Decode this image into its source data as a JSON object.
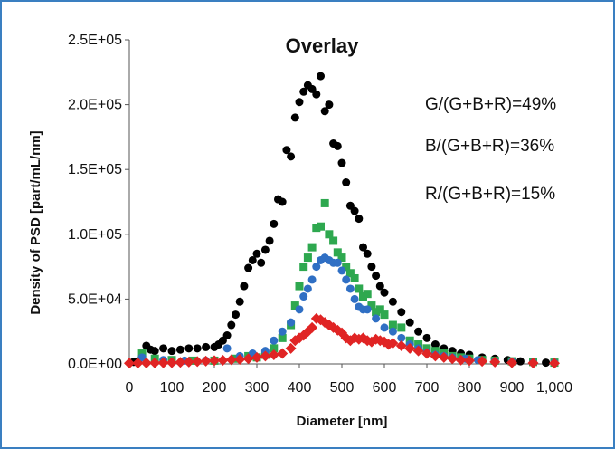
{
  "chart_data": {
    "type": "scatter",
    "title": "Overlay",
    "xlabel": "Diameter [nm]",
    "ylabel": "Density of PSD [part/mL/nm]",
    "xlim": [
      0,
      1000
    ],
    "ylim": [
      0,
      250000
    ],
    "x_ticks": [
      "0",
      "100",
      "200",
      "300",
      "400",
      "500",
      "600",
      "700",
      "800",
      "900",
      "1,000"
    ],
    "y_ticks": [
      "0.0E+00",
      "5.0E+04",
      "1.0E+05",
      "1.5E+05",
      "2.0E+05",
      "2.5E+05"
    ],
    "annotations": [
      "G/(G+B+R)=49%",
      "B/(G+B+R)=36%",
      "R/(G+B+R)=15%"
    ],
    "grid": false,
    "series": [
      {
        "color": "#000000",
        "points": [
          [
            10,
            1500
          ],
          [
            20,
            2000
          ],
          [
            30,
            6000
          ],
          [
            40,
            14000
          ],
          [
            50,
            11000
          ],
          [
            60,
            10000
          ],
          [
            80,
            12000
          ],
          [
            100,
            10000
          ],
          [
            120,
            11000
          ],
          [
            140,
            12000
          ],
          [
            160,
            12000
          ],
          [
            180,
            13000
          ],
          [
            200,
            13000
          ],
          [
            210,
            15000
          ],
          [
            220,
            18000
          ],
          [
            230,
            22000
          ],
          [
            240,
            30000
          ],
          [
            250,
            38000
          ],
          [
            260,
            48000
          ],
          [
            270,
            60000
          ],
          [
            280,
            74000
          ],
          [
            290,
            80000
          ],
          [
            300,
            85000
          ],
          [
            310,
            78000
          ],
          [
            320,
            88000
          ],
          [
            330,
            95000
          ],
          [
            340,
            108000
          ],
          [
            350,
            127000
          ],
          [
            360,
            125000
          ],
          [
            370,
            165000
          ],
          [
            380,
            160000
          ],
          [
            390,
            190000
          ],
          [
            400,
            202000
          ],
          [
            410,
            210000
          ],
          [
            420,
            215000
          ],
          [
            430,
            212000
          ],
          [
            440,
            208000
          ],
          [
            450,
            222000
          ],
          [
            460,
            195000
          ],
          [
            470,
            200000
          ],
          [
            480,
            170000
          ],
          [
            490,
            168000
          ],
          [
            500,
            155000
          ],
          [
            510,
            140000
          ],
          [
            520,
            122000
          ],
          [
            530,
            118000
          ],
          [
            540,
            112000
          ],
          [
            550,
            90000
          ],
          [
            560,
            85000
          ],
          [
            570,
            75000
          ],
          [
            580,
            68000
          ],
          [
            590,
            60000
          ],
          [
            600,
            55000
          ],
          [
            620,
            48000
          ],
          [
            640,
            40000
          ],
          [
            660,
            32000
          ],
          [
            680,
            25000
          ],
          [
            700,
            20000
          ],
          [
            720,
            15000
          ],
          [
            740,
            12000
          ],
          [
            760,
            10000
          ],
          [
            780,
            8000
          ],
          [
            800,
            7000
          ],
          [
            830,
            5000
          ],
          [
            860,
            4000
          ],
          [
            890,
            3000
          ],
          [
            920,
            2000
          ],
          [
            950,
            1500
          ],
          [
            980,
            1000
          ],
          [
            1000,
            800
          ]
        ]
      },
      {
        "color": "#2ea84f",
        "points": [
          [
            30,
            8000
          ],
          [
            60,
            4000
          ],
          [
            100,
            3000
          ],
          [
            150,
            2500
          ],
          [
            200,
            2500
          ],
          [
            250,
            4000
          ],
          [
            280,
            6000
          ],
          [
            300,
            5000
          ],
          [
            320,
            7000
          ],
          [
            340,
            12000
          ],
          [
            360,
            20000
          ],
          [
            380,
            30000
          ],
          [
            390,
            45000
          ],
          [
            400,
            60000
          ],
          [
            410,
            75000
          ],
          [
            420,
            82000
          ],
          [
            430,
            90000
          ],
          [
            440,
            105000
          ],
          [
            450,
            106000
          ],
          [
            460,
            124000
          ],
          [
            470,
            100000
          ],
          [
            480,
            95000
          ],
          [
            490,
            86000
          ],
          [
            500,
            82000
          ],
          [
            510,
            75000
          ],
          [
            520,
            70000
          ],
          [
            530,
            66000
          ],
          [
            540,
            58000
          ],
          [
            550,
            52000
          ],
          [
            560,
            54000
          ],
          [
            570,
            45000
          ],
          [
            580,
            40000
          ],
          [
            590,
            42000
          ],
          [
            600,
            38000
          ],
          [
            620,
            30000
          ],
          [
            640,
            28000
          ],
          [
            660,
            18000
          ],
          [
            680,
            15000
          ],
          [
            700,
            12000
          ],
          [
            720,
            10000
          ],
          [
            740,
            8000
          ],
          [
            760,
            6000
          ],
          [
            780,
            5000
          ],
          [
            800,
            4000
          ],
          [
            830,
            3000
          ],
          [
            860,
            2500
          ],
          [
            900,
            2000
          ],
          [
            950,
            1500
          ],
          [
            1000,
            1000
          ]
        ]
      },
      {
        "color": "#2f6fc4",
        "points": [
          [
            30,
            5000
          ],
          [
            80,
            3000
          ],
          [
            130,
            2500
          ],
          [
            180,
            2500
          ],
          [
            230,
            12000
          ],
          [
            260,
            6000
          ],
          [
            290,
            8000
          ],
          [
            320,
            10000
          ],
          [
            340,
            18000
          ],
          [
            360,
            25000
          ],
          [
            380,
            32000
          ],
          [
            400,
            42000
          ],
          [
            410,
            52000
          ],
          [
            420,
            58000
          ],
          [
            430,
            65000
          ],
          [
            440,
            75000
          ],
          [
            450,
            80000
          ],
          [
            460,
            82000
          ],
          [
            470,
            80000
          ],
          [
            480,
            78000
          ],
          [
            490,
            78000
          ],
          [
            500,
            72000
          ],
          [
            510,
            65000
          ],
          [
            520,
            58000
          ],
          [
            530,
            50000
          ],
          [
            540,
            44000
          ],
          [
            550,
            42000
          ],
          [
            560,
            42000
          ],
          [
            580,
            35000
          ],
          [
            600,
            28000
          ],
          [
            620,
            25000
          ],
          [
            640,
            20000
          ],
          [
            660,
            15000
          ],
          [
            680,
            12000
          ],
          [
            700,
            9000
          ],
          [
            720,
            7000
          ],
          [
            740,
            6000
          ],
          [
            760,
            5000
          ],
          [
            790,
            4000
          ],
          [
            820,
            3000
          ],
          [
            860,
            2000
          ],
          [
            900,
            1500
          ],
          [
            950,
            1000
          ],
          [
            1000,
            800
          ]
        ]
      },
      {
        "color": "#e02424",
        "points": [
          [
            0,
            500
          ],
          [
            20,
            600
          ],
          [
            40,
            700
          ],
          [
            60,
            800
          ],
          [
            80,
            900
          ],
          [
            100,
            1000
          ],
          [
            120,
            1200
          ],
          [
            140,
            1500
          ],
          [
            160,
            1800
          ],
          [
            180,
            2200
          ],
          [
            200,
            2500
          ],
          [
            220,
            2800
          ],
          [
            240,
            3200
          ],
          [
            260,
            3500
          ],
          [
            280,
            4000
          ],
          [
            300,
            5000
          ],
          [
            320,
            6000
          ],
          [
            340,
            7000
          ],
          [
            360,
            8000
          ],
          [
            380,
            12000
          ],
          [
            390,
            18000
          ],
          [
            400,
            20000
          ],
          [
            410,
            22000
          ],
          [
            420,
            25000
          ],
          [
            430,
            28000
          ],
          [
            440,
            35000
          ],
          [
            450,
            34000
          ],
          [
            460,
            32000
          ],
          [
            470,
            30000
          ],
          [
            480,
            28000
          ],
          [
            490,
            26000
          ],
          [
            500,
            24000
          ],
          [
            510,
            20000
          ],
          [
            520,
            18000
          ],
          [
            530,
            20000
          ],
          [
            540,
            19000
          ],
          [
            550,
            20000
          ],
          [
            560,
            18000
          ],
          [
            570,
            17000
          ],
          [
            580,
            19000
          ],
          [
            590,
            18000
          ],
          [
            600,
            17000
          ],
          [
            610,
            15000
          ],
          [
            620,
            16000
          ],
          [
            640,
            14000
          ],
          [
            660,
            12000
          ],
          [
            680,
            10000
          ],
          [
            700,
            8000
          ],
          [
            720,
            6000
          ],
          [
            740,
            5000
          ],
          [
            760,
            4000
          ],
          [
            780,
            3000
          ],
          [
            800,
            2500
          ],
          [
            830,
            2000
          ],
          [
            860,
            1500
          ],
          [
            900,
            1000
          ],
          [
            950,
            700
          ],
          [
            1000,
            500
          ]
        ]
      }
    ]
  }
}
